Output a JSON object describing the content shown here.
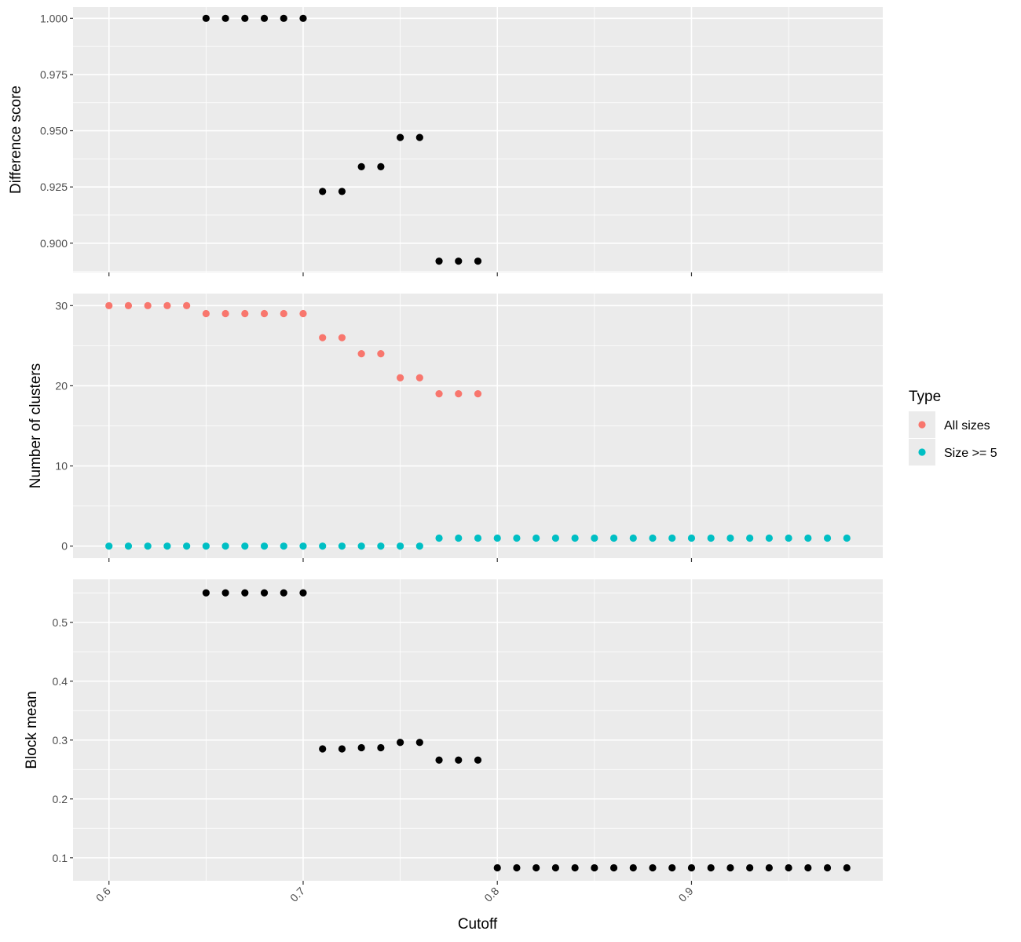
{
  "chart_data": {
    "type": "scatter",
    "x_label": "Cutoff",
    "x_ticks": [
      "0.6",
      "0.7",
      "0.8",
      "0.9"
    ],
    "x_tick_values": [
      0.6,
      0.7,
      0.8,
      0.9
    ],
    "xlim": [
      0.5815,
      0.9985
    ],
    "grid": true,
    "legend": {
      "title": "Type",
      "position": "right",
      "items": [
        {
          "label": "All sizes",
          "color": "#F8766D"
        },
        {
          "label": "Size >= 5",
          "color": "#00BFC4"
        }
      ]
    },
    "panels": [
      {
        "ylabel": "Difference score",
        "ylim": [
          0.887,
          1.005
        ],
        "y_ticks": [
          "0.900",
          "0.925",
          "0.950",
          "0.975",
          "1.000"
        ],
        "y_tick_values": [
          0.9,
          0.925,
          0.95,
          0.975,
          1.0
        ],
        "series": [
          {
            "color": "#000000",
            "x": [
              0.65,
              0.66,
              0.67,
              0.68,
              0.69,
              0.7,
              0.71,
              0.72,
              0.73,
              0.74,
              0.75,
              0.76,
              0.77,
              0.78,
              0.79
            ],
            "y": [
              1.0,
              1.0,
              1.0,
              1.0,
              1.0,
              1.0,
              0.923,
              0.923,
              0.934,
              0.934,
              0.947,
              0.947,
              0.892,
              0.892,
              0.892
            ]
          }
        ]
      },
      {
        "ylabel": "Number of clusters",
        "ylim": [
          -1.5,
          31.5
        ],
        "y_ticks": [
          "0",
          "10",
          "20",
          "30"
        ],
        "y_tick_values": [
          0,
          10,
          20,
          30
        ],
        "series": [
          {
            "name": "All sizes",
            "color": "#F8766D",
            "x": [
              0.6,
              0.61,
              0.62,
              0.63,
              0.64,
              0.65,
              0.66,
              0.67,
              0.68,
              0.69,
              0.7,
              0.71,
              0.72,
              0.73,
              0.74,
              0.75,
              0.76,
              0.77,
              0.78,
              0.79
            ],
            "y": [
              30,
              30,
              30,
              30,
              30,
              29,
              29,
              29,
              29,
              29,
              29,
              26,
              26,
              24,
              24,
              21,
              21,
              19,
              19,
              19
            ]
          },
          {
            "name": "Size >= 5",
            "color": "#00BFC4",
            "x": [
              0.6,
              0.61,
              0.62,
              0.63,
              0.64,
              0.65,
              0.66,
              0.67,
              0.68,
              0.69,
              0.7,
              0.71,
              0.72,
              0.73,
              0.74,
              0.75,
              0.76,
              0.77,
              0.78,
              0.79,
              0.8,
              0.81,
              0.82,
              0.83,
              0.84,
              0.85,
              0.86,
              0.87,
              0.88,
              0.89,
              0.9,
              0.91,
              0.92,
              0.93,
              0.94,
              0.95,
              0.96,
              0.97,
              0.98
            ],
            "y": [
              0,
              0,
              0,
              0,
              0,
              0,
              0,
              0,
              0,
              0,
              0,
              0,
              0,
              0,
              0,
              0,
              0,
              1,
              1,
              1,
              1,
              1,
              1,
              1,
              1,
              1,
              1,
              1,
              1,
              1,
              1,
              1,
              1,
              1,
              1,
              1,
              1,
              1,
              1
            ]
          }
        ]
      },
      {
        "ylabel": "Block mean",
        "ylim": [
          0.061,
          0.573
        ],
        "y_ticks": [
          "0.1",
          "0.2",
          "0.3",
          "0.4",
          "0.5"
        ],
        "y_tick_values": [
          0.1,
          0.2,
          0.3,
          0.4,
          0.5
        ],
        "series": [
          {
            "color": "#000000",
            "x": [
              0.65,
              0.66,
              0.67,
              0.68,
              0.69,
              0.7,
              0.71,
              0.72,
              0.73,
              0.74,
              0.75,
              0.76,
              0.77,
              0.78,
              0.79,
              0.8,
              0.81,
              0.82,
              0.83,
              0.84,
              0.85,
              0.86,
              0.87,
              0.88,
              0.89,
              0.9,
              0.91,
              0.92,
              0.93,
              0.94,
              0.95,
              0.96,
              0.97,
              0.98
            ],
            "y": [
              0.55,
              0.55,
              0.55,
              0.55,
              0.55,
              0.55,
              0.285,
              0.285,
              0.287,
              0.287,
              0.296,
              0.296,
              0.266,
              0.266,
              0.266,
              0.083,
              0.083,
              0.083,
              0.083,
              0.083,
              0.083,
              0.083,
              0.083,
              0.083,
              0.083,
              0.083,
              0.083,
              0.083,
              0.083,
              0.083,
              0.083,
              0.083,
              0.083,
              0.083
            ]
          }
        ]
      }
    ]
  }
}
